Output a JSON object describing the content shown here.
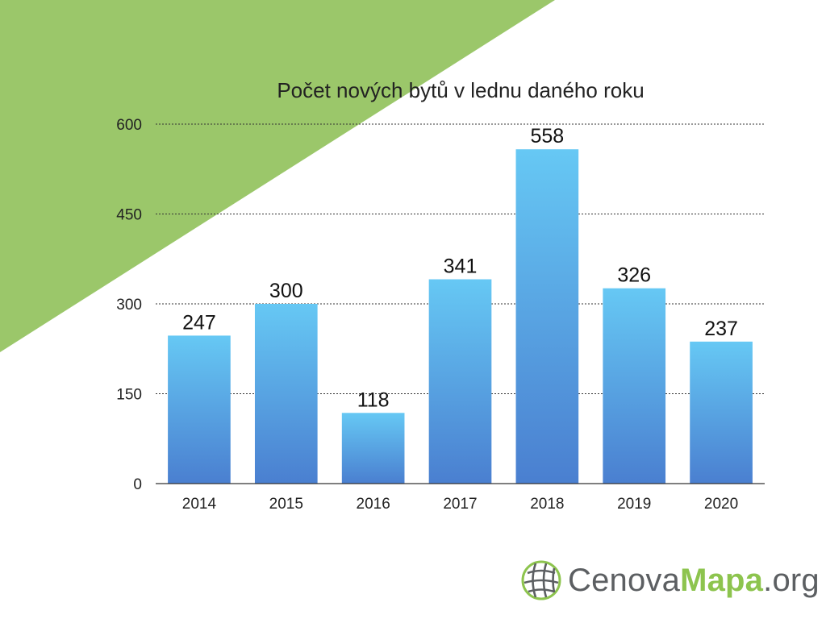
{
  "colors": {
    "background": "#ffffff",
    "accent_green": "#9bc76a",
    "bar_top": "#66c8f4",
    "bar_bottom": "#4a7fd0",
    "logo_gray": "#5c5f62",
    "logo_green": "#8dc44e"
  },
  "chart_data": {
    "type": "bar",
    "title": "Počet nových bytů v lednu daného roku",
    "categories": [
      "2014",
      "2015",
      "2016",
      "2017",
      "2018",
      "2019",
      "2020"
    ],
    "values": [
      247,
      300,
      118,
      341,
      558,
      326,
      237
    ],
    "xlabel": "",
    "ylabel": "",
    "ylim": [
      0,
      600
    ],
    "yticks": [
      0,
      150,
      300,
      450,
      600
    ],
    "grid": true,
    "data_labels": true
  },
  "logo": {
    "icon": "globe-icon",
    "part1": "Cenova",
    "part2": "Mapa",
    "part3": ".org"
  }
}
